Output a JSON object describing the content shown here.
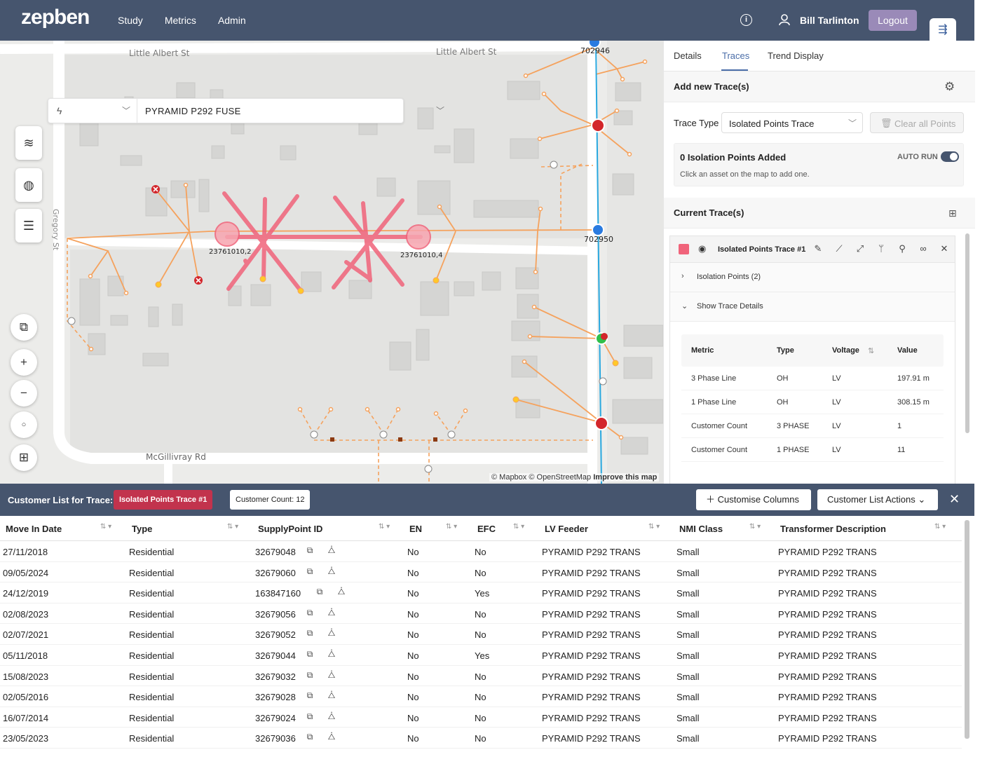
{
  "header": {
    "logo": "zepben",
    "nav": [
      "Study",
      "Metrics",
      "Admin"
    ],
    "user_name": "Bill Tarlinton",
    "logout_label": "Logout"
  },
  "map": {
    "search_value": "PYRAMID P292 FUSE",
    "streets": {
      "little_albert_1": "Little Albert St",
      "little_albert_2": "Little Albert St",
      "gregory": "Gregory St",
      "mcgillivray": "McGillivray Rd"
    },
    "asset_labels": {
      "a1": "23761010,2",
      "a2": "23761010,4",
      "n1": "702946",
      "n2": "702950"
    },
    "attribution": "© Mapbox © OpenStreetMap",
    "improve_link": "Improve this map"
  },
  "right_panel": {
    "tabs": [
      "Details",
      "Traces",
      "Trend Display"
    ],
    "add_trace_title": "Add new Trace(s)",
    "trace_type_label": "Trace Type",
    "trace_type_value": "Isolated Points Trace",
    "clear_label": "Clear all Points",
    "isolation_title": "0 Isolation Points Added",
    "isolation_sub": "Click an asset on the map to add one.",
    "auto_run": "AUTO RUN",
    "current_traces_title": "Current Trace(s)",
    "trace_name": "Isolated Points Trace #1",
    "isolation_points": "Isolation Points (2)",
    "show_details": "Show Trace Details",
    "metrics_headers": [
      "Metric",
      "Type",
      "Voltage",
      "Value"
    ],
    "metrics_rows": [
      [
        "3 Phase Line",
        "OH",
        "LV",
        "197.91 m"
      ],
      [
        "1 Phase Line",
        "OH",
        "LV",
        "308.15 m"
      ],
      [
        "Customer Count",
        "3 PHASE",
        "LV",
        "1"
      ],
      [
        "Customer Count",
        "1 PHASE",
        "LV",
        "11"
      ]
    ]
  },
  "customer_list": {
    "title": "Customer List for Trace:",
    "trace_badge": "Isolated Points Trace #1",
    "count_badge": "Customer Count: 12",
    "customise_label": "Customise Columns",
    "actions_label": "Customer List Actions",
    "columns": [
      "Move In Date",
      "Type",
      "SupplyPoint ID",
      "EN",
      "EFC",
      "LV Feeder",
      "NMI Class",
      "Transformer Description"
    ],
    "rows": [
      [
        "27/11/2018",
        "Residential",
        "32679048",
        "No",
        "No",
        "PYRAMID P292 TRANS",
        "Small",
        "PYRAMID P292 TRANS"
      ],
      [
        "09/05/2024",
        "Residential",
        "32679060",
        "No",
        "No",
        "PYRAMID P292 TRANS",
        "Small",
        "PYRAMID P292 TRANS"
      ],
      [
        "24/12/2019",
        "Residential",
        "163847160",
        "No",
        "Yes",
        "PYRAMID P292 TRANS",
        "Small",
        "PYRAMID P292 TRANS"
      ],
      [
        "02/08/2023",
        "Residential",
        "32679056",
        "No",
        "No",
        "PYRAMID P292 TRANS",
        "Small",
        "PYRAMID P292 TRANS"
      ],
      [
        "02/07/2021",
        "Residential",
        "32679052",
        "No",
        "No",
        "PYRAMID P292 TRANS",
        "Small",
        "PYRAMID P292 TRANS"
      ],
      [
        "05/11/2018",
        "Residential",
        "32679044",
        "No",
        "Yes",
        "PYRAMID P292 TRANS",
        "Small",
        "PYRAMID P292 TRANS"
      ],
      [
        "15/08/2023",
        "Residential",
        "32679032",
        "No",
        "No",
        "PYRAMID P292 TRANS",
        "Small",
        "PYRAMID P292 TRANS"
      ],
      [
        "02/05/2016",
        "Residential",
        "32679028",
        "No",
        "No",
        "PYRAMID P292 TRANS",
        "Small",
        "PYRAMID P292 TRANS"
      ],
      [
        "16/07/2014",
        "Residential",
        "32679024",
        "No",
        "No",
        "PYRAMID P292 TRANS",
        "Small",
        "PYRAMID P292 TRANS"
      ],
      [
        "23/05/2023",
        "Residential",
        "32679036",
        "No",
        "No",
        "PYRAMID P292 TRANS",
        "Small",
        "PYRAMID P292 TRANS"
      ]
    ]
  },
  "colors": {
    "header_bg": "#46556e",
    "accent": "#4a6da8",
    "trace_red": "#f0637a",
    "network_orange": "#f5a25d",
    "feeder_blue": "#29a8df"
  }
}
